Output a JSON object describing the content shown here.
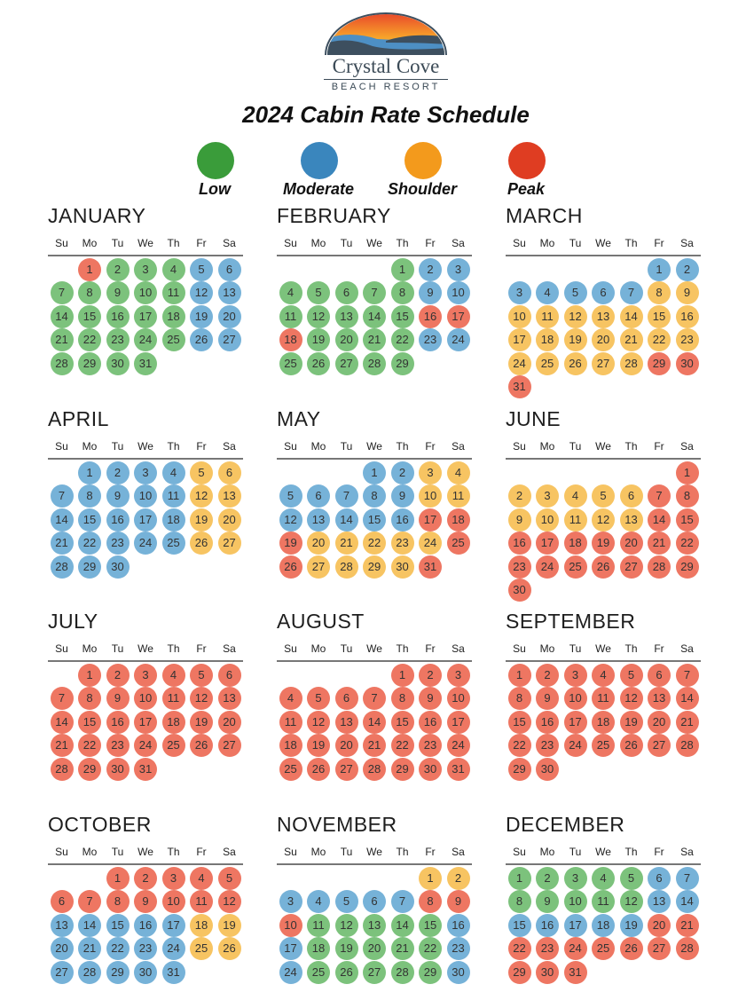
{
  "brand": {
    "name": "Crystal Cove",
    "sub": "BEACH RESORT"
  },
  "title": "2024 Cabin Rate Schedule",
  "legend": [
    {
      "label": "Low",
      "color": "#3a9c3a"
    },
    {
      "label": "Moderate",
      "color": "#3a86bd"
    },
    {
      "label": "Shoulder",
      "color": "#f39a1c"
    },
    {
      "label": "Peak",
      "color": "#df3d22"
    }
  ],
  "day_colors": {
    "L": "#7cc27c",
    "M": "#76b2d8",
    "S": "#f7c462",
    "P": "#ee7662"
  },
  "weekdays": [
    "Su",
    "Mo",
    "Tu",
    "We",
    "Th",
    "Fr",
    "Sa"
  ],
  "months": [
    {
      "name": "JANUARY",
      "start": 1,
      "days": 31,
      "rates": "PLLLMMLLLLLMMLLLLLMMLLLLLMMLLLL"
    },
    {
      "name": "FEBRUARY",
      "start": 4,
      "days": 29,
      "rates": "LMMLLLLLMMLLLLLPPPLLLLMMLLLLL"
    },
    {
      "name": "MARCH",
      "start": 5,
      "days": 31,
      "rates": "MMMMMMMSSSSSSSSSSSSSSSSSSSSSPPP"
    },
    {
      "name": "APRIL",
      "start": 1,
      "days": 30,
      "rates": "MMMMSSMMMMMSSMMMMMSSMMMMMSSMMM"
    },
    {
      "name": "MAY",
      "start": 3,
      "days": 31,
      "rates": "MMSSMMMMMSSMMMMMPPPSSSSSPPSSSSP"
    },
    {
      "name": "JUNE",
      "start": 6,
      "days": 30,
      "rates": "PSSSSSPPSSSSSPPPPPPPPPPPPPPPPP"
    },
    {
      "name": "JULY",
      "start": 1,
      "days": 31,
      "rates": "PPPPPPPPPPPPPPPPPPPPPPPPPPPPPPP"
    },
    {
      "name": "AUGUST",
      "start": 4,
      "days": 31,
      "rates": "PPPPPPPPPPPPPPPPPPPPPPPPPPPPPPP"
    },
    {
      "name": "SEPTEMBER",
      "start": 0,
      "days": 30,
      "rates": "PPPPPPPPPPPPPPPPPPPPPPPPPPPPPP"
    },
    {
      "name": "OCTOBER",
      "start": 2,
      "days": 31,
      "rates": "PPPPPPPPPPPPMMMMMSSMMMMMSSMMMMM"
    },
    {
      "name": "NOVEMBER",
      "start": 5,
      "days": 30,
      "rates": "SSMMMMMPPPLLLLLMMLLLLLMMLLLLLM"
    },
    {
      "name": "DECEMBER",
      "start": 0,
      "days": 31,
      "rates": "LLLLLMMLLLLLMMMMMMMPPPPPPPPPPPP"
    }
  ]
}
